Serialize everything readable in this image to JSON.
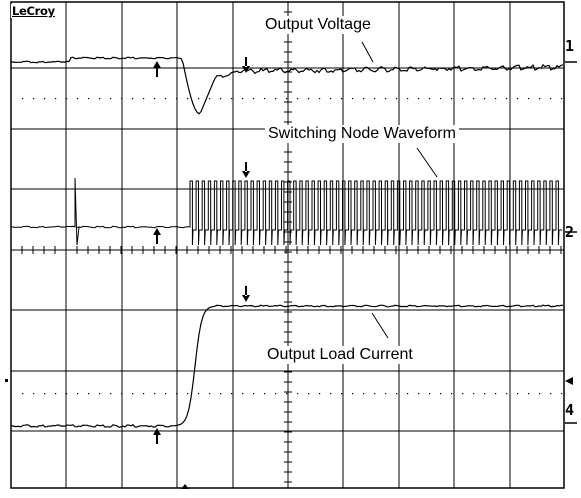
{
  "brand": "LeCroy",
  "annotations": {
    "output_voltage": "Output Voltage",
    "switching_node": "Switching Node Waveform",
    "load_current": "Output Load Current"
  },
  "channels": [
    "1",
    "2",
    "4"
  ],
  "colors": {
    "trace": "#000000",
    "grid": "#000000",
    "background": "#ffffff"
  },
  "icons": {
    "trigger_marker": "arrow-up-icon",
    "level_marker": "arrow-left-icon"
  }
}
